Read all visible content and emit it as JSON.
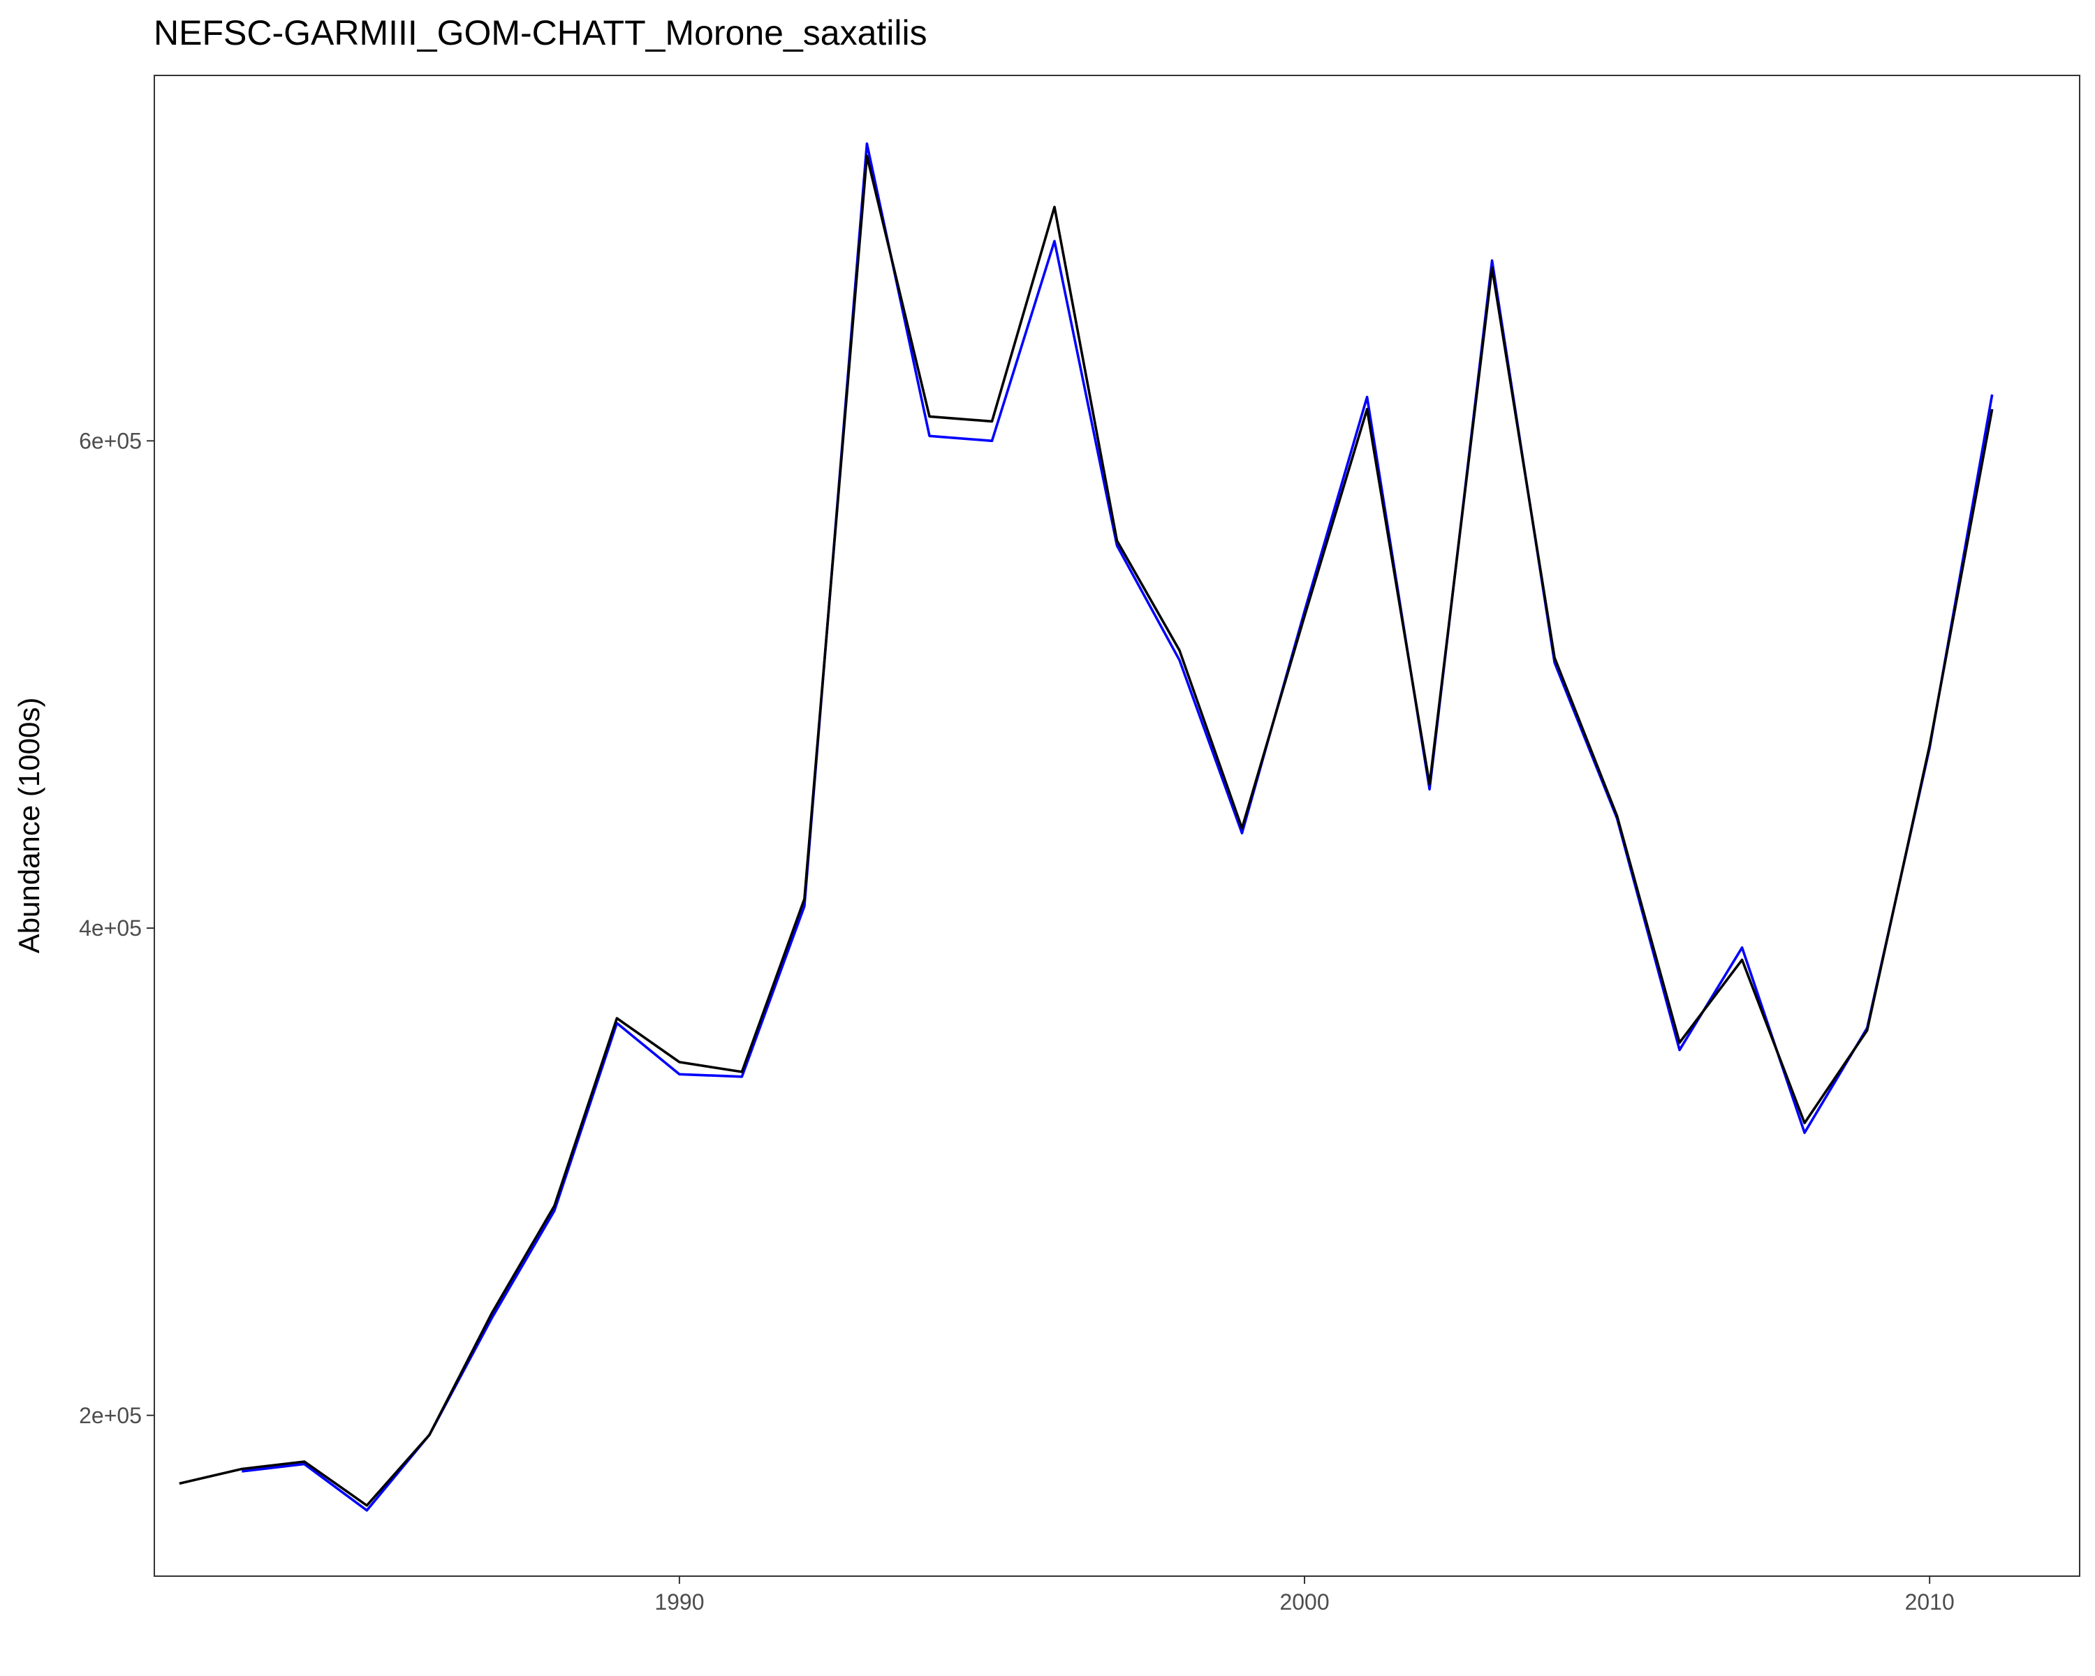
{
  "chart_data": {
    "type": "line",
    "title": "NEFSC-GARMIII_GOM-CHATT_Morone_saxatilis",
    "xlabel": "",
    "ylabel": "Abundance (1000s)",
    "xlim": [
      1981.6,
      2012.4
    ],
    "ylim": [
      134000,
      750000
    ],
    "xticks": [
      1990,
      2000,
      2010
    ],
    "xtick_labels": [
      "1990",
      "2000",
      "2010"
    ],
    "yticks": [
      200000,
      400000,
      600000
    ],
    "ytick_labels": [
      "2e+05",
      "4e+05",
      "6e+05"
    ],
    "grid": false,
    "legend": "none",
    "series": [
      {
        "color": "#0000ff",
        "x": [
          1983,
          1984,
          1985,
          1986,
          1987,
          1988,
          1989,
          1990,
          1991,
          1992,
          1993,
          1994,
          1995,
          1996,
          1997,
          1998,
          1999,
          2000,
          2001,
          2002,
          2003,
          2004,
          2005,
          2006,
          2007,
          2008,
          2009,
          2010,
          2011
        ],
        "values": [
          177000,
          180000,
          161000,
          192000,
          240000,
          284000,
          361000,
          340000,
          339000,
          409000,
          722000,
          602000,
          600000,
          682000,
          557000,
          510000,
          439000,
          530000,
          618000,
          457000,
          674000,
          509000,
          445000,
          350000,
          392000,
          316000,
          359000,
          474000,
          619000
        ]
      },
      {
        "color": "#000000",
        "x": [
          1982,
          1983,
          1984,
          1985,
          1986,
          1987,
          1988,
          1989,
          1990,
          1991,
          1992,
          1993,
          1994,
          1995,
          1996,
          1997,
          1998,
          1999,
          2000,
          2001,
          2002,
          2003,
          2004,
          2005,
          2006,
          2007,
          2008,
          2009,
          2010,
          2011
        ],
        "values": [
          172000,
          178000,
          181000,
          163000,
          192000,
          242000,
          286000,
          363000,
          345000,
          341000,
          412000,
          717000,
          610000,
          608000,
          696000,
          559000,
          514000,
          441000,
          528000,
          613000,
          459000,
          671000,
          511000,
          446000,
          353000,
          387000,
          320000,
          358000,
          475000,
          613000
        ]
      }
    ]
  }
}
